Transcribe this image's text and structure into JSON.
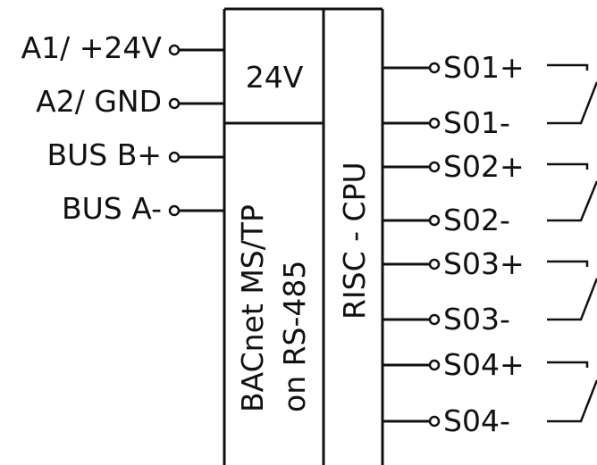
{
  "inputs": [
    {
      "label": "A1/ +24V"
    },
    {
      "label": "A2/ GND"
    },
    {
      "label": "BUS B+"
    },
    {
      "label": "BUS A-"
    }
  ],
  "blocks": {
    "power": "24V",
    "comm_line1": "BACnet MS/TP",
    "comm_line2": "on RS-485",
    "cpu": "RISC - CPU"
  },
  "outputs": [
    {
      "label": "S01+"
    },
    {
      "label": "S01-"
    },
    {
      "label": "S02+"
    },
    {
      "label": "S02-"
    },
    {
      "label": "S03+"
    },
    {
      "label": "S03-"
    },
    {
      "label": "S04+"
    },
    {
      "label": "S04-"
    }
  ],
  "colors": {
    "line": "#111111",
    "background": "#ffffff"
  }
}
